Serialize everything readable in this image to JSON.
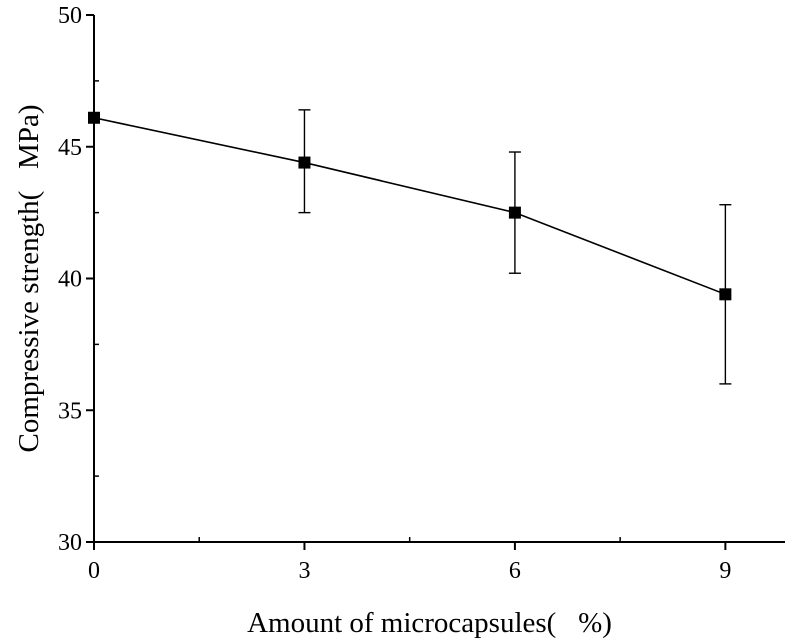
{
  "chart_data": {
    "type": "line",
    "title": "",
    "xlabel": "Amount of microcapsules(   %)",
    "ylabel": "Compressive strength(   MPa)",
    "x": [
      0,
      3,
      6,
      9
    ],
    "x_tick_labels": [
      "0",
      "3",
      "6",
      "9"
    ],
    "xlim": [
      0,
      9.85
    ],
    "ylim": [
      30,
      50
    ],
    "y_ticks": [
      30,
      35,
      40,
      45,
      50
    ],
    "y_tick_labels": [
      "30",
      "35",
      "40",
      "45",
      "50"
    ],
    "series": [
      {
        "values": [
          46.1,
          44.4,
          42.5,
          39.4
        ],
        "error_upper": [
          46.1,
          46.4,
          44.8,
          42.8
        ],
        "error_lower": [
          46.1,
          42.5,
          40.2,
          36.0
        ],
        "marker": "square",
        "color": "#000000"
      }
    ],
    "grid": false,
    "legend": "none"
  }
}
